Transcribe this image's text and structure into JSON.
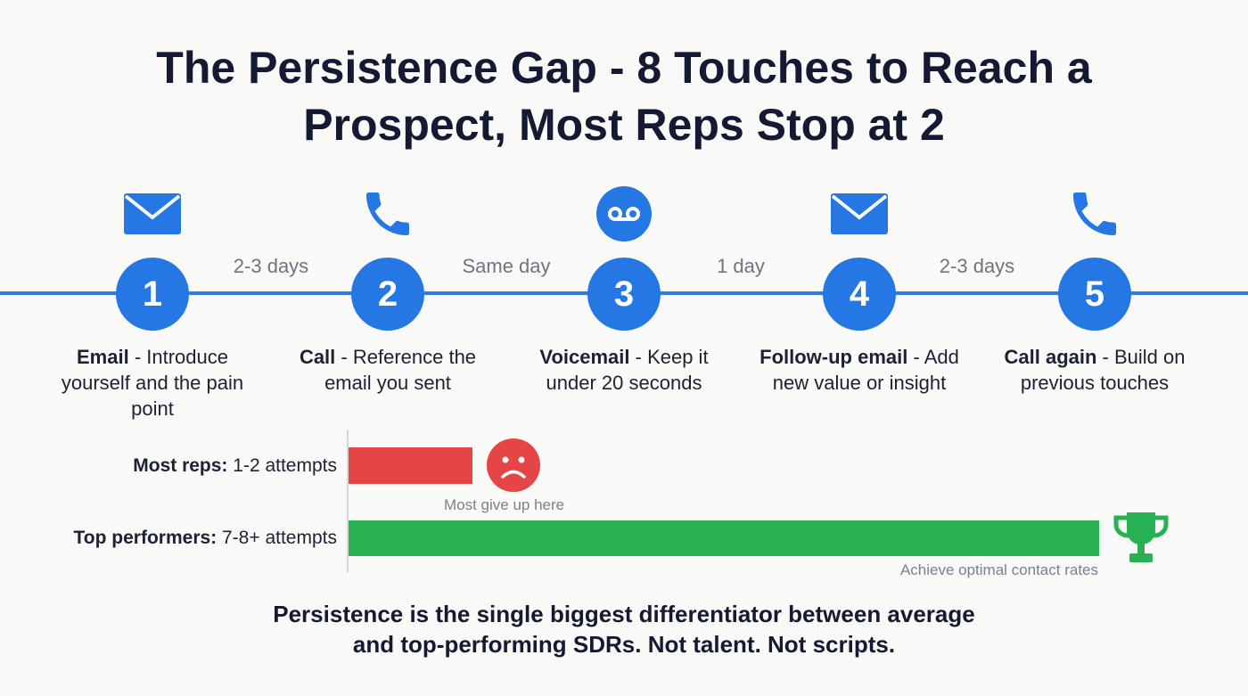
{
  "title": {
    "line1": "The Persistence Gap - 8 Touches to Reach a",
    "line2": "Prospect, Most Reps Stop at 2"
  },
  "colors": {
    "accent": "#2578e4",
    "red": "#e54545",
    "green": "#27b153"
  },
  "steps": [
    {
      "number": "1",
      "icon": "email-icon",
      "action": "Email",
      "detail": " - Introduce yourself and the pain point"
    },
    {
      "number": "2",
      "icon": "phone-icon",
      "action": "Call",
      "detail": " - Reference the email you sent"
    },
    {
      "number": "3",
      "icon": "voicemail-icon",
      "action": "Voicemail",
      "detail": " - Keep it under 20 seconds"
    },
    {
      "number": "4",
      "icon": "email-icon",
      "action": "Follow-up email",
      "detail": " - Add new value or insight"
    },
    {
      "number": "5",
      "icon": "phone-icon",
      "action": "Call again",
      "detail": " - Build on previous touches"
    }
  ],
  "gaps": [
    "2-3 days",
    "Same day",
    "1 day",
    "2-3 days"
  ],
  "comparison": {
    "most_reps": {
      "label": "Most reps:",
      "value": " 1-2 attempts",
      "note": "Most give up here",
      "attempts": 2,
      "icon": "sad-face-icon"
    },
    "top_performers": {
      "label": "Top performers:",
      "value": " 7-8+ attempts",
      "note": "Achieve optimal contact rates",
      "attempts": 8,
      "icon": "trophy-icon"
    }
  },
  "footer": {
    "line1": "Persistence is the single biggest differentiator between average",
    "line2": "and top-performing SDRs. Not talent. Not scripts."
  }
}
